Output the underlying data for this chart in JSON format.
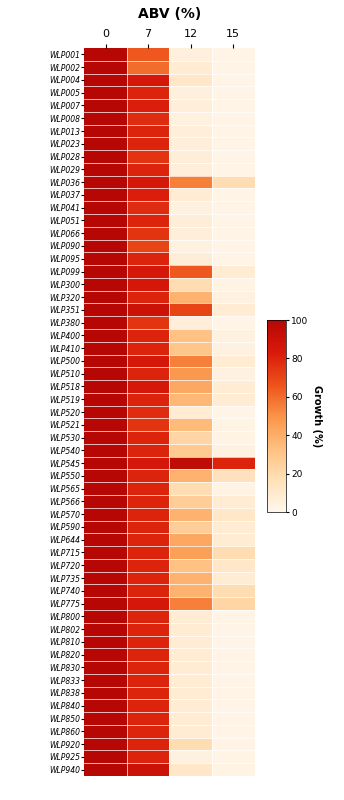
{
  "title": "ABV (%)",
  "ylabel": "Growth (%)",
  "xtick_labels": [
    "0",
    "7",
    "12",
    "15"
  ],
  "yeast_strains": [
    "WLP001",
    "WLP002",
    "WLP004",
    "WLP005",
    "WLP007",
    "WLP008",
    "WLP013",
    "WLP023",
    "WLP028",
    "WLP029",
    "WLP036",
    "WLP037",
    "WLP041",
    "WLP051",
    "WLP066",
    "WLP090",
    "WLP095",
    "WLP099",
    "WLP300",
    "WLP320",
    "WLP351",
    "WLP380",
    "WLP400",
    "WLP410",
    "WLP500",
    "WLP510",
    "WLP518",
    "WLP519",
    "WLP520",
    "WLP521",
    "WLP530",
    "WLP540",
    "WLP545",
    "WLP550",
    "WLP565",
    "WLP566",
    "WLP570",
    "WLP590",
    "WLP644",
    "WLP715",
    "WLP720",
    "WLP735",
    "WLP740",
    "WLP775",
    "WLP800",
    "WLP802",
    "WLP810",
    "WLP820",
    "WLP830",
    "WLP833",
    "WLP838",
    "WLP840",
    "WLP850",
    "WLP860",
    "WLP920",
    "WLP925",
    "WLP940"
  ],
  "data": [
    [
      100,
      65,
      5,
      2
    ],
    [
      100,
      60,
      8,
      2
    ],
    [
      100,
      85,
      12,
      2
    ],
    [
      100,
      80,
      5,
      2
    ],
    [
      100,
      82,
      6,
      2
    ],
    [
      100,
      78,
      4,
      2
    ],
    [
      100,
      80,
      6,
      2
    ],
    [
      100,
      80,
      6,
      2
    ],
    [
      100,
      75,
      7,
      2
    ],
    [
      100,
      80,
      6,
      2
    ],
    [
      100,
      85,
      55,
      18
    ],
    [
      100,
      82,
      8,
      2
    ],
    [
      100,
      78,
      4,
      2
    ],
    [
      100,
      80,
      7,
      2
    ],
    [
      100,
      75,
      6,
      2
    ],
    [
      100,
      70,
      4,
      2
    ],
    [
      100,
      80,
      7,
      2
    ],
    [
      100,
      85,
      65,
      8
    ],
    [
      100,
      85,
      18,
      3
    ],
    [
      100,
      80,
      38,
      4
    ],
    [
      100,
      90,
      70,
      8
    ],
    [
      100,
      75,
      6,
      2
    ],
    [
      100,
      80,
      32,
      4
    ],
    [
      100,
      80,
      30,
      4
    ],
    [
      100,
      85,
      55,
      8
    ],
    [
      100,
      80,
      48,
      4
    ],
    [
      100,
      85,
      42,
      8
    ],
    [
      100,
      80,
      36,
      8
    ],
    [
      100,
      78,
      8,
      2
    ],
    [
      100,
      75,
      35,
      3
    ],
    [
      100,
      80,
      22,
      3
    ],
    [
      100,
      80,
      28,
      4
    ],
    [
      100,
      85,
      95,
      80
    ],
    [
      100,
      80,
      38,
      15
    ],
    [
      100,
      80,
      18,
      3
    ],
    [
      100,
      80,
      26,
      8
    ],
    [
      100,
      80,
      38,
      12
    ],
    [
      100,
      80,
      26,
      8
    ],
    [
      100,
      80,
      42,
      8
    ],
    [
      100,
      80,
      45,
      18
    ],
    [
      100,
      80,
      32,
      12
    ],
    [
      100,
      80,
      38,
      8
    ],
    [
      100,
      80,
      38,
      18
    ],
    [
      100,
      85,
      55,
      22
    ],
    [
      100,
      80,
      8,
      2
    ],
    [
      100,
      80,
      8,
      2
    ],
    [
      100,
      80,
      8,
      2
    ],
    [
      100,
      80,
      8,
      2
    ],
    [
      100,
      80,
      8,
      2
    ],
    [
      100,
      80,
      8,
      2
    ],
    [
      100,
      80,
      8,
      2
    ],
    [
      100,
      80,
      8,
      2
    ],
    [
      100,
      80,
      8,
      2
    ],
    [
      100,
      80,
      8,
      2
    ],
    [
      100,
      80,
      18,
      3
    ],
    [
      100,
      80,
      4,
      2
    ],
    [
      100,
      90,
      12,
      3
    ]
  ],
  "colorbar_ticks": [
    0,
    20,
    40,
    60,
    80,
    100
  ],
  "vmin": 0,
  "vmax": 100,
  "background_color": "#ffffff"
}
